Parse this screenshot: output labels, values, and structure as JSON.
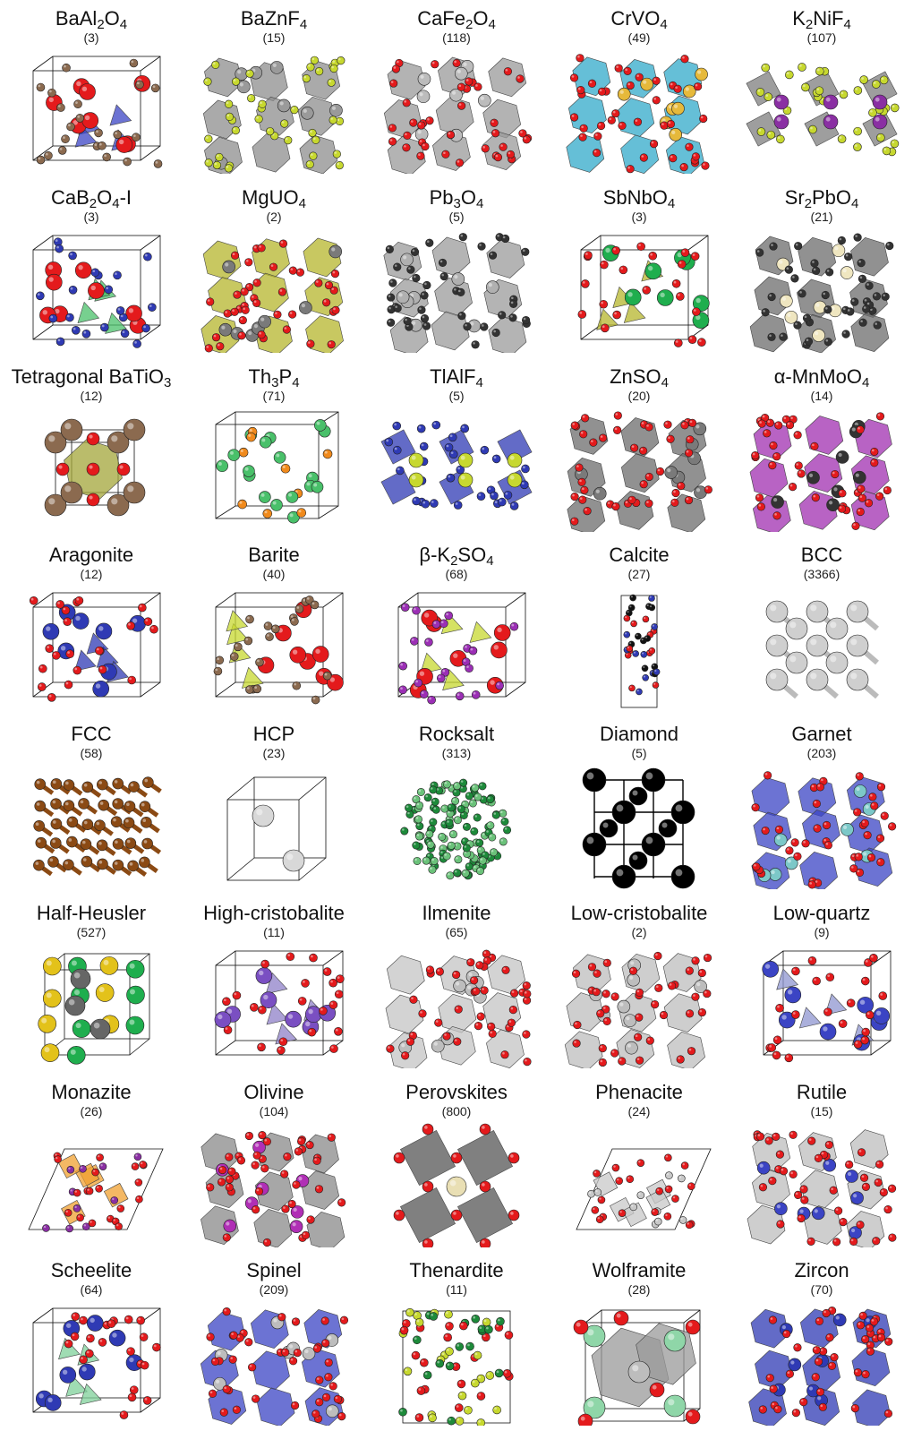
{
  "structures": [
    {
      "id": "BaAl2O4",
      "parts": [
        [
          "BaAl",
          ""
        ],
        [
          "2",
          "sub"
        ],
        [
          "O",
          ""
        ],
        [
          "4",
          "sub"
        ]
      ],
      "count": "(3)",
      "style": "cage",
      "palette": [
        "#8b6a4f",
        "#e41a1c",
        "#3b44c4"
      ],
      "poly": "#3b44c4"
    },
    {
      "id": "BaZnF4",
      "parts": [
        [
          "BaZnF",
          ""
        ],
        [
          "4",
          "sub"
        ]
      ],
      "count": "(15)",
      "style": "poly",
      "palette": [
        "#c7d82f",
        "#8b6a4f",
        "#9a9a9a"
      ],
      "poly": "#8e8e8e"
    },
    {
      "id": "CaFe2O4",
      "parts": [
        [
          "CaFe",
          ""
        ],
        [
          "2",
          "sub"
        ],
        [
          "O",
          ""
        ],
        [
          "4",
          "sub"
        ]
      ],
      "count": "(118)",
      "style": "poly",
      "palette": [
        "#e41a1c",
        "#2f3ab4",
        "#bcbcbc"
      ],
      "poly": "#9a9a9a"
    },
    {
      "id": "CrVO4",
      "parts": [
        [
          "CrVO",
          ""
        ],
        [
          "4",
          "sub"
        ]
      ],
      "count": "(49)",
      "style": "poly",
      "palette": [
        "#e41a1c",
        "#2aa7c6",
        "#e6b93b"
      ],
      "poly": "#31a9c9"
    },
    {
      "id": "K2NiF4",
      "parts": [
        [
          "K",
          ""
        ],
        [
          "2",
          "sub"
        ],
        [
          "NiF",
          ""
        ],
        [
          "4",
          "sub"
        ]
      ],
      "count": "(107)",
      "style": "layer",
      "palette": [
        "#8a2fa3",
        "#c7d82f",
        "#7d7d7d"
      ],
      "poly": "#7d7d7d"
    },
    {
      "id": "CaB2O4-I",
      "parts": [
        [
          "CaB",
          ""
        ],
        [
          "2",
          "sub"
        ],
        [
          "O",
          ""
        ],
        [
          "4",
          "sub"
        ],
        [
          "-I",
          ""
        ]
      ],
      "count": "(3)",
      "style": "cage",
      "palette": [
        "#2f3ab4",
        "#e41a1c",
        "#49c06a"
      ],
      "poly": "#49c06a"
    },
    {
      "id": "MgUO4",
      "parts": [
        [
          "MgUO",
          ""
        ],
        [
          "4",
          "sub"
        ]
      ],
      "count": "(2)",
      "style": "poly",
      "palette": [
        "#e41a1c",
        "#a7a72a",
        "#7a7a7a"
      ],
      "poly": "#b5b52c"
    },
    {
      "id": "Pb3O4",
      "parts": [
        [
          "Pb",
          ""
        ],
        [
          "3",
          "sub"
        ],
        [
          "O",
          ""
        ],
        [
          "4",
          "sub"
        ]
      ],
      "count": "(5)",
      "style": "poly",
      "palette": [
        "#333333",
        "#e41a1c",
        "#b0b0b0"
      ],
      "poly": "#9b9b9b"
    },
    {
      "id": "SbNbO4",
      "parts": [
        [
          "SbNbO",
          ""
        ],
        [
          "4",
          "sub"
        ]
      ],
      "count": "(3)",
      "style": "cage",
      "palette": [
        "#e41a1c",
        "#1fae4e",
        "#b5b52c"
      ],
      "poly": "#b5b52c"
    },
    {
      "id": "Sr2PbO4",
      "parts": [
        [
          "Sr",
          ""
        ],
        [
          "2",
          "sub"
        ],
        [
          "PbO",
          ""
        ],
        [
          "4",
          "sub"
        ]
      ],
      "count": "(21)",
      "style": "poly",
      "palette": [
        "#333333",
        "#e41a1c",
        "#efe6c0"
      ],
      "poly": "#6c6c6c"
    },
    {
      "id": "Tetragonal BaTiO3",
      "parts": [
        [
          "Tetragonal BaTiO",
          ""
        ],
        [
          "3",
          "sub"
        ]
      ],
      "count": "(12)",
      "style": "perov",
      "palette": [
        "#8b6a4f",
        "#e41a1c",
        "#a3a53a"
      ],
      "poly": "#a3a53a"
    },
    {
      "id": "Th3P4",
      "parts": [
        [
          "Th",
          ""
        ],
        [
          "3",
          "sub"
        ],
        [
          "P",
          ""
        ],
        [
          "4",
          "sub"
        ]
      ],
      "count": "(71)",
      "style": "scatter",
      "palette": [
        "#49c06a",
        "#f08a1c"
      ],
      "poly": "#49c06a"
    },
    {
      "id": "TlAlF4",
      "parts": [
        [
          "TlAlF",
          ""
        ],
        [
          "4",
          "sub"
        ]
      ],
      "count": "(5)",
      "style": "layer",
      "palette": [
        "#c7d82f",
        "#2f3ab4",
        "#9b2fb5"
      ],
      "poly": "#2f3ab4"
    },
    {
      "id": "ZnSO4",
      "parts": [
        [
          "ZnSO",
          ""
        ],
        [
          "4",
          "sub"
        ]
      ],
      "count": "(20)",
      "style": "poly",
      "palette": [
        "#e41a1c",
        "#c7d82f",
        "#7a7a7a"
      ],
      "poly": "#6c6c6c"
    },
    {
      "id": "α-MnMoO4",
      "parts": [
        [
          "α-MnMoO",
          ""
        ],
        [
          "4",
          "sub"
        ]
      ],
      "count": "(14)",
      "style": "poly",
      "palette": [
        "#e41a1c",
        "#b02fb5",
        "#333333"
      ],
      "poly": "#a02fb0"
    },
    {
      "id": "Aragonite",
      "parts": [
        [
          "Aragonite",
          ""
        ]
      ],
      "count": "(12)",
      "style": "cage",
      "palette": [
        "#e41a1c",
        "#2f3ab4",
        "#111111"
      ],
      "poly": "#2f3ab4"
    },
    {
      "id": "Barite",
      "parts": [
        [
          "Barite",
          ""
        ]
      ],
      "count": "(40)",
      "style": "cage",
      "palette": [
        "#8b6a4f",
        "#e41a1c",
        "#c7d82f"
      ],
      "poly": "#c7d82f"
    },
    {
      "id": "β-K2SO4",
      "parts": [
        [
          "β-K",
          ""
        ],
        [
          "2",
          "sub"
        ],
        [
          "SO",
          ""
        ],
        [
          "4",
          "sub"
        ]
      ],
      "count": "(68)",
      "style": "cage",
      "palette": [
        "#9b2fb5",
        "#e41a1c",
        "#c7d82f"
      ],
      "poly": "#c7d82f"
    },
    {
      "id": "Calcite",
      "parts": [
        [
          "Calcite",
          ""
        ]
      ],
      "count": "(27)",
      "style": "tall",
      "palette": [
        "#e41a1c",
        "#2f3ab4",
        "#111111"
      ],
      "poly": "#2f3ab4"
    },
    {
      "id": "BCC",
      "parts": [
        [
          "BCC",
          ""
        ]
      ],
      "count": "(3366)",
      "style": "bcc",
      "palette": [
        "#cfcfcf"
      ],
      "poly": "#cfcfcf"
    },
    {
      "id": "FCC",
      "parts": [
        [
          "FCC",
          ""
        ]
      ],
      "count": "(58)",
      "style": "fcc",
      "palette": [
        "#8b4a14"
      ],
      "poly": "#8b4a14"
    },
    {
      "id": "HCP",
      "parts": [
        [
          "HCP",
          ""
        ]
      ],
      "count": "(23)",
      "style": "hcp",
      "palette": [
        "#d8d8d8"
      ],
      "poly": "#d8d8d8"
    },
    {
      "id": "Rocksalt",
      "parts": [
        [
          "Rocksalt",
          ""
        ]
      ],
      "count": "(313)",
      "style": "rocksalt",
      "palette": [
        "#1d8a3a",
        "#6bc27a"
      ],
      "poly": "#1d8a3a"
    },
    {
      "id": "Diamond",
      "parts": [
        [
          "Diamond",
          ""
        ]
      ],
      "count": "(5)",
      "style": "diamond",
      "palette": [
        "#000000"
      ],
      "poly": "#000000"
    },
    {
      "id": "Garnet",
      "parts": [
        [
          "Garnet",
          ""
        ]
      ],
      "count": "(203)",
      "style": "poly",
      "palette": [
        "#e41a1c",
        "#2f3ab4",
        "#7cc8c8"
      ],
      "poly": "#3b44c4"
    },
    {
      "id": "Half-Heusler",
      "parts": [
        [
          "Half-Heusler",
          ""
        ]
      ],
      "count": "(527)",
      "style": "heusler",
      "palette": [
        "#e3c21a",
        "#1fae4e",
        "#666666"
      ],
      "poly": "#666666"
    },
    {
      "id": "High-cristobalite",
      "parts": [
        [
          "High-cristobalite",
          ""
        ]
      ],
      "count": "(11)",
      "style": "cage",
      "palette": [
        "#e41a1c",
        "#7a4fc2",
        "#49c06a"
      ],
      "poly": "#8f80c8"
    },
    {
      "id": "Ilmenite",
      "parts": [
        [
          "Ilmenite",
          ""
        ]
      ],
      "count": "(65)",
      "style": "poly",
      "palette": [
        "#e41a1c",
        "#cfcfcf",
        "#bdbdbd"
      ],
      "poly": "#c4c4c4"
    },
    {
      "id": "Low-cristobalite",
      "parts": [
        [
          "Low-cristobalite",
          ""
        ]
      ],
      "count": "(2)",
      "style": "poly",
      "palette": [
        "#e41a1c",
        "#e0a060",
        "#bdbdbd"
      ],
      "poly": "#bdbdbd"
    },
    {
      "id": "Low-quartz",
      "parts": [
        [
          "Low-quartz",
          ""
        ]
      ],
      "count": "(9)",
      "style": "cage",
      "palette": [
        "#e41a1c",
        "#3b44c4"
      ],
      "poly": "#8f96d0"
    },
    {
      "id": "Monazite",
      "parts": [
        [
          "Monazite",
          ""
        ]
      ],
      "count": "(26)",
      "style": "skew",
      "palette": [
        "#e41a1c",
        "#8a2fa3",
        "#f0a030"
      ],
      "poly": "#f0a030"
    },
    {
      "id": "Olivine",
      "parts": [
        [
          "Olivine",
          ""
        ]
      ],
      "count": "(104)",
      "style": "poly",
      "palette": [
        "#e41a1c",
        "#7a7a7a",
        "#b02fb5"
      ],
      "poly": "#8a8a8a"
    },
    {
      "id": "Perovskites",
      "parts": [
        [
          "Perovskites",
          ""
        ]
      ],
      "count": "(800)",
      "style": "perov2",
      "palette": [
        "#e41a1c",
        "#e9dfb4",
        "#555555"
      ],
      "poly": "#555555"
    },
    {
      "id": "Phenacite",
      "parts": [
        [
          "Phenacite",
          ""
        ]
      ],
      "count": "(24)",
      "style": "skew",
      "palette": [
        "#e41a1c",
        "#c8c8c8",
        "#8a2fa3"
      ],
      "poly": "#c8c8c8"
    },
    {
      "id": "Rutile",
      "parts": [
        [
          "Rutile",
          ""
        ]
      ],
      "count": "(15)",
      "style": "poly",
      "palette": [
        "#e41a1c",
        "#1fae4e",
        "#3b44c4"
      ],
      "poly": "#bdbdbd"
    },
    {
      "id": "Scheelite",
      "parts": [
        [
          "Scheelite",
          ""
        ]
      ],
      "count": "(64)",
      "style": "cage",
      "palette": [
        "#e41a1c",
        "#2f3ab4",
        "#7fd09a"
      ],
      "poly": "#7fd09a"
    },
    {
      "id": "Spinel",
      "parts": [
        [
          "Spinel",
          ""
        ]
      ],
      "count": "(209)",
      "style": "poly",
      "palette": [
        "#e41a1c",
        "#2f3ab4",
        "#bdbdbd"
      ],
      "poly": "#3b44c4"
    },
    {
      "id": "Thenardite",
      "parts": [
        [
          "Thenardite",
          ""
        ]
      ],
      "count": "(11)",
      "style": "tall2",
      "palette": [
        "#e41a1c",
        "#1d8a3a",
        "#c7d82f"
      ],
      "poly": "#c7d82f"
    },
    {
      "id": "Wolframite",
      "parts": [
        [
          "Wolframite",
          ""
        ]
      ],
      "count": "(28)",
      "style": "wolf",
      "palette": [
        "#e41a1c",
        "#8fd6a8",
        "#9a9a9a"
      ],
      "poly": "#9a9a9a"
    },
    {
      "id": "Zircon",
      "parts": [
        [
          "Zircon",
          ""
        ]
      ],
      "count": "(70)",
      "style": "poly",
      "palette": [
        "#e41a1c",
        "#e3c21a",
        "#2f3ab4"
      ],
      "poly": "#2f3ab4"
    }
  ]
}
